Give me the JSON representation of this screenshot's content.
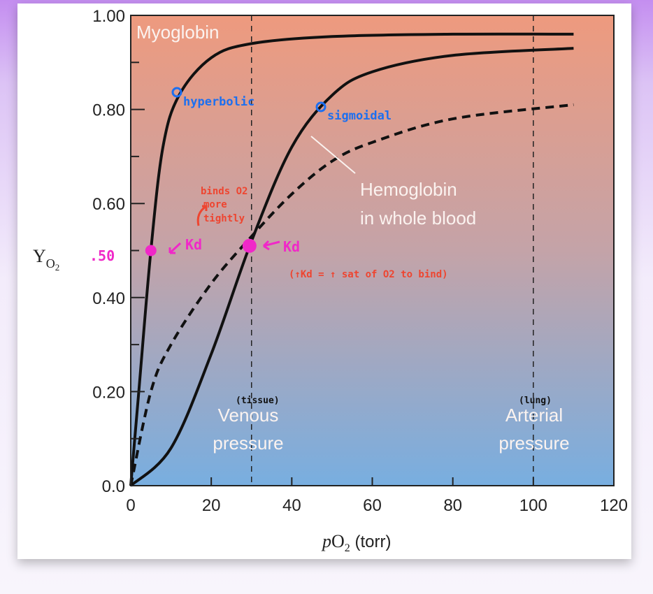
{
  "chart_data": {
    "type": "line",
    "xlabel": "pO2 (torr)",
    "ylabel": "YO2",
    "xlim": [
      0,
      120
    ],
    "ylim": [
      0,
      1.0
    ],
    "x_ticks": [
      "0",
      "20",
      "40",
      "60",
      "80",
      "100",
      "120"
    ],
    "y_ticks": [
      "0.0",
      "0.20",
      "0.40",
      "0.60",
      "0.80",
      "1.00"
    ],
    "grid": false,
    "series": [
      {
        "name": "Myoglobin",
        "style": "solid",
        "color": "#111111",
        "x": [
          0,
          2,
          5,
          8,
          12,
          20,
          30,
          50,
          80,
          110
        ],
        "y": [
          0,
          0.2,
          0.5,
          0.72,
          0.83,
          0.91,
          0.94,
          0.955,
          0.96,
          0.96
        ]
      },
      {
        "name": "",
        "style": "solid",
        "color": "#111111",
        "x": [
          0,
          10,
          20,
          30,
          40,
          50,
          60,
          80,
          110
        ],
        "y": [
          0,
          0.08,
          0.28,
          0.52,
          0.72,
          0.83,
          0.88,
          0.915,
          0.93
        ]
      },
      {
        "name": "Hemoglobin in whole blood",
        "style": "dashed",
        "color": "#111111",
        "x": [
          0,
          5,
          10,
          20,
          30,
          40,
          50,
          60,
          80,
          110
        ],
        "y": [
          0,
          0.2,
          0.3,
          0.43,
          0.53,
          0.62,
          0.69,
          0.73,
          0.78,
          0.81
        ]
      }
    ],
    "reference_lines": [
      {
        "x": 30,
        "label": [
          "Venous",
          "pressure"
        ],
        "note": "(tissue)"
      },
      {
        "x": 100,
        "label": [
          "Arterial",
          "pressure"
        ],
        "note": "(lung)"
      }
    ],
    "labels": {
      "myoglobin": "Myoglobin",
      "hemoglobin": [
        "Hemoglobin",
        "in whole blood"
      ]
    },
    "annotations": {
      "hyperbolic": "hyperbolic",
      "sigmoidal": "sigmoidal",
      "half": ".50",
      "kd_left": "Kd",
      "kd_right": "Kd",
      "binds": [
        "binds O2",
        "more",
        "tightly"
      ],
      "note": "(↑Kd = ↑ sat of O2 to bind)"
    },
    "background": {
      "top": "#ee9a7e",
      "bottom": "#78aee0"
    }
  }
}
